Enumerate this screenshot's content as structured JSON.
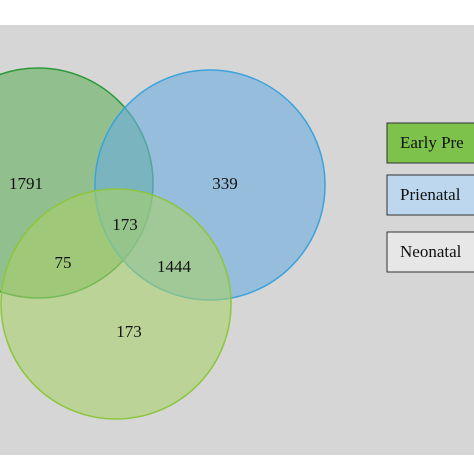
{
  "sets": [
    {
      "label": "Early Pre"
    },
    {
      "label": "Prienatal"
    },
    {
      "label": "Neonatal"
    }
  ],
  "regions": [
    {
      "count": 1791
    },
    {
      "count": 339
    },
    {
      "count": 173
    },
    {
      "count": 75
    },
    {
      "count": 1444
    },
    {
      "count": 173
    }
  ]
}
